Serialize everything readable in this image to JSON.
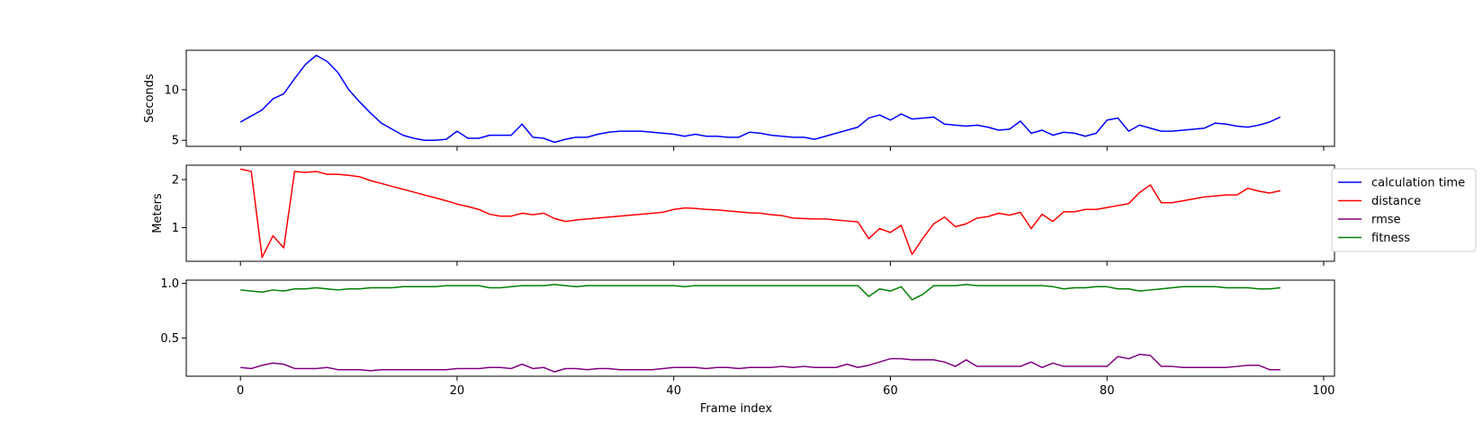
{
  "chart_data": {
    "type": "line",
    "xlabel": "Frame index",
    "xlim": [
      -5,
      101
    ],
    "xticks": [
      0,
      20,
      40,
      60,
      80,
      100
    ],
    "x_start": 0,
    "grid": false,
    "legend": {
      "placement": "right",
      "entries": [
        {
          "label": "calculation time",
          "color": "#0000ff"
        },
        {
          "label": "distance",
          "color": "#ff0000"
        },
        {
          "label": "rmse",
          "color": "#800080"
        },
        {
          "label": "fitness",
          "color": "#008000"
        }
      ]
    },
    "panels": [
      {
        "ylabel": "Seconds",
        "ylim": [
          4.4,
          13.9
        ],
        "yticks": [
          5,
          10
        ],
        "series": [
          {
            "name": "calculation time",
            "color": "#0000ff",
            "values": [
              6.8,
              7.4,
              8.0,
              9.1,
              9.6,
              11.1,
              12.5,
              13.4,
              12.8,
              11.7,
              10.0,
              8.8,
              7.7,
              6.7,
              6.1,
              5.5,
              5.2,
              5.0,
              5.0,
              5.1,
              5.9,
              5.2,
              5.2,
              5.5,
              5.5,
              5.5,
              6.6,
              5.3,
              5.2,
              4.8,
              5.1,
              5.3,
              5.3,
              5.6,
              5.8,
              5.9,
              5.9,
              5.9,
              5.8,
              5.7,
              5.6,
              5.4,
              5.6,
              5.4,
              5.4,
              5.3,
              5.3,
              5.8,
              5.7,
              5.5,
              5.4,
              5.3,
              5.3,
              5.1,
              5.4,
              5.7,
              6.0,
              6.3,
              7.2,
              7.5,
              7.0,
              7.6,
              7.1,
              7.2,
              7.3,
              6.6,
              6.5,
              6.4,
              6.5,
              6.3,
              6.0,
              6.1,
              6.9,
              5.7,
              6.0,
              5.5,
              5.8,
              5.7,
              5.4,
              5.7,
              7.0,
              7.2,
              5.9,
              6.5,
              6.2,
              5.9,
              5.9,
              6.0,
              6.1,
              6.2,
              6.7,
              6.6,
              6.4,
              6.3,
              6.5,
              6.8,
              7.3
            ]
          }
        ]
      },
      {
        "ylabel": "Meters",
        "ylim": [
          0.3,
          2.3
        ],
        "yticks": [
          1,
          2
        ],
        "series": [
          {
            "name": "distance",
            "color": "#ff0000",
            "values": [
              2.22,
              2.17,
              0.38,
              0.83,
              0.58,
              2.17,
              2.15,
              2.17,
              2.11,
              2.11,
              2.09,
              2.06,
              1.98,
              1.92,
              1.86,
              1.8,
              1.74,
              1.68,
              1.62,
              1.56,
              1.49,
              1.44,
              1.38,
              1.28,
              1.24,
              1.24,
              1.3,
              1.27,
              1.3,
              1.19,
              1.13,
              1.16,
              1.18,
              1.2,
              1.22,
              1.24,
              1.26,
              1.28,
              1.3,
              1.32,
              1.38,
              1.41,
              1.4,
              1.38,
              1.37,
              1.35,
              1.33,
              1.31,
              1.3,
              1.27,
              1.25,
              1.2,
              1.19,
              1.18,
              1.18,
              1.16,
              1.14,
              1.12,
              0.77,
              0.98,
              0.9,
              1.05,
              0.44,
              0.78,
              1.08,
              1.22,
              1.02,
              1.08,
              1.2,
              1.23,
              1.3,
              1.26,
              1.32,
              0.98,
              1.28,
              1.13,
              1.33,
              1.33,
              1.38,
              1.38,
              1.42,
              1.46,
              1.5,
              1.73,
              1.89,
              1.52,
              1.52,
              1.56,
              1.6,
              1.64,
              1.66,
              1.68,
              1.68,
              1.82,
              1.76,
              1.72,
              1.77
            ]
          }
        ]
      },
      {
        "ylabel": "",
        "ylim": [
          0.15,
          1.03
        ],
        "yticks": [
          0.5,
          1.0
        ],
        "series": [
          {
            "name": "rmse",
            "color": "#800080",
            "values": [
              0.23,
              0.22,
              0.25,
              0.27,
              0.26,
              0.22,
              0.22,
              0.22,
              0.23,
              0.21,
              0.21,
              0.21,
              0.2,
              0.21,
              0.21,
              0.21,
              0.21,
              0.21,
              0.21,
              0.21,
              0.22,
              0.22,
              0.22,
              0.23,
              0.23,
              0.22,
              0.26,
              0.22,
              0.23,
              0.19,
              0.22,
              0.22,
              0.21,
              0.22,
              0.22,
              0.21,
              0.21,
              0.21,
              0.21,
              0.22,
              0.23,
              0.23,
              0.23,
              0.22,
              0.23,
              0.23,
              0.22,
              0.23,
              0.23,
              0.23,
              0.24,
              0.23,
              0.24,
              0.23,
              0.23,
              0.23,
              0.26,
              0.23,
              0.25,
              0.28,
              0.31,
              0.31,
              0.3,
              0.3,
              0.3,
              0.28,
              0.24,
              0.3,
              0.24,
              0.24,
              0.24,
              0.24,
              0.24,
              0.28,
              0.23,
              0.27,
              0.24,
              0.24,
              0.24,
              0.24,
              0.24,
              0.33,
              0.31,
              0.35,
              0.34,
              0.24,
              0.24,
              0.23,
              0.23,
              0.23,
              0.23,
              0.23,
              0.24,
              0.25,
              0.25,
              0.21,
              0.21
            ]
          },
          {
            "name": "fitness",
            "color": "#008000",
            "values": [
              0.94,
              0.93,
              0.92,
              0.94,
              0.93,
              0.95,
              0.95,
              0.96,
              0.95,
              0.94,
              0.95,
              0.95,
              0.96,
              0.96,
              0.96,
              0.97,
              0.97,
              0.97,
              0.97,
              0.98,
              0.98,
              0.98,
              0.98,
              0.96,
              0.96,
              0.97,
              0.98,
              0.98,
              0.98,
              0.99,
              0.98,
              0.97,
              0.98,
              0.98,
              0.98,
              0.98,
              0.98,
              0.98,
              0.98,
              0.98,
              0.98,
              0.97,
              0.98,
              0.98,
              0.98,
              0.98,
              0.98,
              0.98,
              0.98,
              0.98,
              0.98,
              0.98,
              0.98,
              0.98,
              0.98,
              0.98,
              0.98,
              0.98,
              0.88,
              0.95,
              0.93,
              0.97,
              0.85,
              0.9,
              0.98,
              0.98,
              0.98,
              0.99,
              0.98,
              0.98,
              0.98,
              0.98,
              0.98,
              0.98,
              0.98,
              0.97,
              0.95,
              0.96,
              0.96,
              0.97,
              0.97,
              0.95,
              0.95,
              0.93,
              0.94,
              0.95,
              0.96,
              0.97,
              0.97,
              0.97,
              0.97,
              0.96,
              0.96,
              0.96,
              0.95,
              0.95,
              0.96
            ]
          }
        ]
      }
    ]
  }
}
